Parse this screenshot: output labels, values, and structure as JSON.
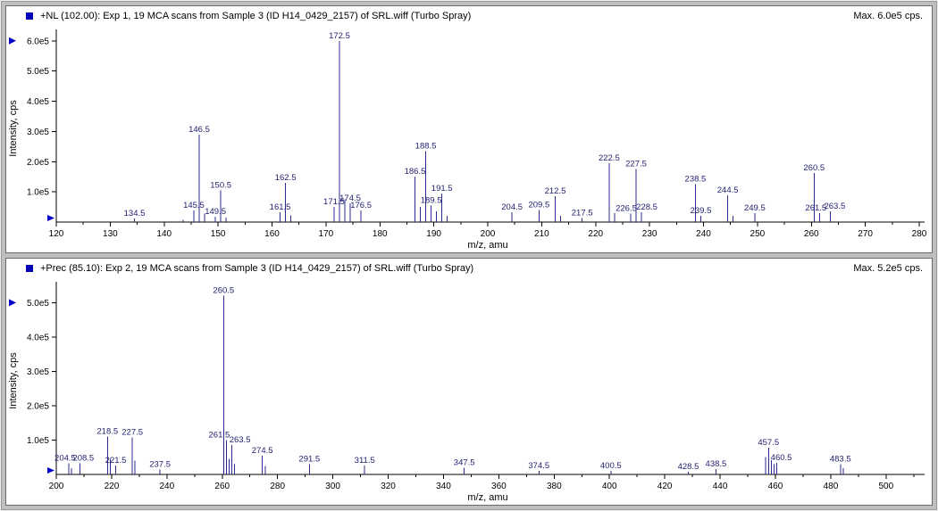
{
  "colors": {
    "peak": "#2b2b8f",
    "peak_label": "#1f1f6e",
    "marker": "#0000c8",
    "axis": "#000000",
    "pane_icon": "#0000b4"
  },
  "chart_data": [
    {
      "type": "bar",
      "title": "+NL (102.00): Exp 1, 19 MCA scans from Sample 3 (ID H14_0429_2157) of SRL.wiff (Turbo Spray)",
      "max_label": "Max. 6.0e5 cps.",
      "xlabel": "m/z, amu",
      "ylabel": "Intensity, cps",
      "y_unit_scale": "1e5 cps",
      "xlim": [
        120,
        280
      ],
      "ylim": [
        0,
        6.2
      ],
      "x_ticks": [
        120,
        130,
        140,
        150,
        160,
        170,
        180,
        190,
        200,
        210,
        220,
        230,
        240,
        250,
        260,
        270,
        280
      ],
      "y_ticks": [
        {
          "v": 1,
          "label": "1.0e5"
        },
        {
          "v": 2,
          "label": "2.0e5"
        },
        {
          "v": 3,
          "label": "3.0e5"
        },
        {
          "v": 4,
          "label": "4.0e5"
        },
        {
          "v": 5,
          "label": "5.0e5"
        },
        {
          "v": 6,
          "label": "6.0e5"
        }
      ],
      "peaks": [
        {
          "mz": 134.5,
          "i": 0.12,
          "label": "134.5"
        },
        {
          "mz": 143.5,
          "i": 0.08,
          "label": ""
        },
        {
          "mz": 145.5,
          "i": 0.38,
          "label": "145.5"
        },
        {
          "mz": 146.5,
          "i": 2.9,
          "label": "146.5"
        },
        {
          "mz": 147.5,
          "i": 0.28,
          "label": ""
        },
        {
          "mz": 149.5,
          "i": 0.18,
          "label": "149.5"
        },
        {
          "mz": 150.5,
          "i": 1.05,
          "label": "150.5"
        },
        {
          "mz": 151.5,
          "i": 0.15,
          "label": ""
        },
        {
          "mz": 161.5,
          "i": 0.32,
          "label": "161.5"
        },
        {
          "mz": 162.5,
          "i": 1.3,
          "label": "162.5"
        },
        {
          "mz": 163.5,
          "i": 0.22,
          "label": ""
        },
        {
          "mz": 171.5,
          "i": 0.5,
          "label": "171.5"
        },
        {
          "mz": 172.5,
          "i": 6.0,
          "label": "172.5"
        },
        {
          "mz": 173.5,
          "i": 0.75,
          "label": ""
        },
        {
          "mz": 174.5,
          "i": 0.62,
          "label": "174.5"
        },
        {
          "mz": 176.5,
          "i": 0.38,
          "label": "176.5"
        },
        {
          "mz": 186.5,
          "i": 1.5,
          "label": "186.5"
        },
        {
          "mz": 187.5,
          "i": 0.5,
          "label": ""
        },
        {
          "mz": 188.5,
          "i": 2.35,
          "label": "188.5"
        },
        {
          "mz": 189.5,
          "i": 0.55,
          "label": "189.5"
        },
        {
          "mz": 190.5,
          "i": 0.35,
          "label": ""
        },
        {
          "mz": 191.5,
          "i": 0.95,
          "label": "191.5"
        },
        {
          "mz": 192.5,
          "i": 0.2,
          "label": ""
        },
        {
          "mz": 204.5,
          "i": 0.32,
          "label": "204.5"
        },
        {
          "mz": 209.5,
          "i": 0.4,
          "label": "209.5"
        },
        {
          "mz": 212.5,
          "i": 0.85,
          "label": "212.5"
        },
        {
          "mz": 213.5,
          "i": 0.2,
          "label": ""
        },
        {
          "mz": 217.5,
          "i": 0.14,
          "label": "217.5"
        },
        {
          "mz": 222.5,
          "i": 1.95,
          "label": "222.5"
        },
        {
          "mz": 223.5,
          "i": 0.3,
          "label": ""
        },
        {
          "mz": 226.5,
          "i": 0.28,
          "label": "226.5",
          "dx": -5
        },
        {
          "mz": 227.5,
          "i": 1.75,
          "label": "227.5"
        },
        {
          "mz": 228.5,
          "i": 0.32,
          "label": "228.5",
          "dx": 6
        },
        {
          "mz": 238.5,
          "i": 1.25,
          "label": "238.5"
        },
        {
          "mz": 239.5,
          "i": 0.2,
          "label": "239.5"
        },
        {
          "mz": 244.5,
          "i": 0.88,
          "label": "244.5"
        },
        {
          "mz": 245.5,
          "i": 0.2,
          "label": ""
        },
        {
          "mz": 249.5,
          "i": 0.3,
          "label": "249.5"
        },
        {
          "mz": 260.5,
          "i": 1.62,
          "label": "260.5"
        },
        {
          "mz": 261.5,
          "i": 0.3,
          "label": "261.5",
          "dx": -4
        },
        {
          "mz": 263.5,
          "i": 0.35,
          "label": "263.5",
          "dx": 5
        }
      ]
    },
    {
      "type": "bar",
      "title": "+Prec (85.10): Exp 2, 19 MCA scans from Sample 3 (ID H14_0429_2157) of SRL.wiff (Turbo Spray)",
      "max_label": "Max. 5.2e5 cps.",
      "xlabel": "m/z, amu",
      "ylabel": "Intensity, cps",
      "y_unit_scale": "1e5 cps",
      "xlim": [
        200,
        512
      ],
      "ylim": [
        0,
        5.45
      ],
      "x_ticks": [
        200,
        220,
        240,
        260,
        280,
        300,
        320,
        340,
        360,
        380,
        400,
        420,
        440,
        460,
        480,
        500
      ],
      "y_ticks": [
        {
          "v": 1,
          "label": "1.0e5"
        },
        {
          "v": 2,
          "label": "2.0e5"
        },
        {
          "v": 3,
          "label": "3.0e5"
        },
        {
          "v": 4,
          "label": "4.0e5"
        },
        {
          "v": 5,
          "label": "5.0e5"
        }
      ],
      "peaks": [
        {
          "mz": 204.5,
          "i": 0.33,
          "label": "204.5",
          "dx": -4
        },
        {
          "mz": 205.5,
          "i": 0.18,
          "label": ""
        },
        {
          "mz": 208.5,
          "i": 0.33,
          "label": "208.5",
          "dx": 4
        },
        {
          "mz": 218.5,
          "i": 1.1,
          "label": "218.5"
        },
        {
          "mz": 219.5,
          "i": 0.45,
          "label": ""
        },
        {
          "mz": 221.5,
          "i": 0.26,
          "label": "221.5"
        },
        {
          "mz": 227.5,
          "i": 1.08,
          "label": "227.5"
        },
        {
          "mz": 228.5,
          "i": 0.4,
          "label": ""
        },
        {
          "mz": 237.5,
          "i": 0.14,
          "label": "237.5"
        },
        {
          "mz": 260.5,
          "i": 5.2,
          "label": "260.5"
        },
        {
          "mz": 261.5,
          "i": 1.0,
          "label": "261.5",
          "dx": -8
        },
        {
          "mz": 262.5,
          "i": 0.45,
          "label": ""
        },
        {
          "mz": 263.5,
          "i": 0.85,
          "label": "263.5",
          "dx": 9
        },
        {
          "mz": 264.5,
          "i": 0.3,
          "label": ""
        },
        {
          "mz": 274.5,
          "i": 0.55,
          "label": "274.5"
        },
        {
          "mz": 275.5,
          "i": 0.25,
          "label": ""
        },
        {
          "mz": 291.5,
          "i": 0.3,
          "label": "291.5"
        },
        {
          "mz": 311.5,
          "i": 0.26,
          "label": "311.5"
        },
        {
          "mz": 347.5,
          "i": 0.2,
          "label": "347.5"
        },
        {
          "mz": 374.5,
          "i": 0.1,
          "label": "374.5"
        },
        {
          "mz": 400.5,
          "i": 0.1,
          "label": "400.5"
        },
        {
          "mz": 428.5,
          "i": 0.08,
          "label": "428.5"
        },
        {
          "mz": 438.5,
          "i": 0.16,
          "label": "438.5"
        },
        {
          "mz": 456.5,
          "i": 0.5,
          "label": ""
        },
        {
          "mz": 457.5,
          "i": 0.78,
          "label": "457.5"
        },
        {
          "mz": 458.5,
          "i": 0.42,
          "label": ""
        },
        {
          "mz": 459.5,
          "i": 0.3,
          "label": ""
        },
        {
          "mz": 460.5,
          "i": 0.34,
          "label": "460.5",
          "dx": 5
        },
        {
          "mz": 483.5,
          "i": 0.3,
          "label": "483.5"
        },
        {
          "mz": 484.5,
          "i": 0.18,
          "label": ""
        }
      ]
    }
  ]
}
